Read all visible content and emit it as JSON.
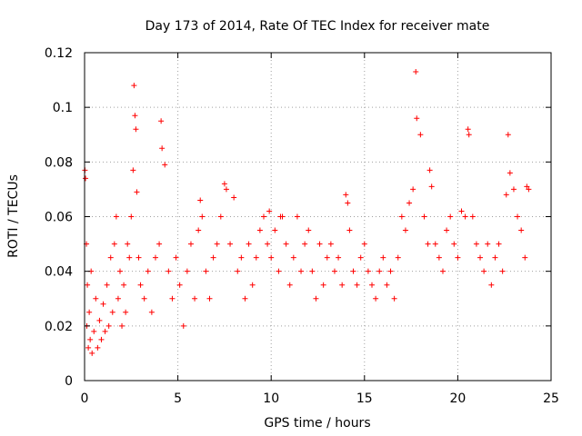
{
  "chart_data": {
    "type": "scatter",
    "title": "Day 173 of 2014, Rate Of TEC Index for receiver mate",
    "xlabel": "GPS time / hours",
    "ylabel": "ROTI / TECUs",
    "xlim": [
      0,
      25
    ],
    "ylim": [
      0,
      0.12
    ],
    "xticks": [
      0,
      5,
      10,
      15,
      20,
      25
    ],
    "xtick_labels": [
      "0",
      "5",
      "10",
      "15",
      "20",
      "25"
    ],
    "yticks": [
      0,
      0.02,
      0.04,
      0.06,
      0.08,
      0.1,
      0.12
    ],
    "ytick_labels": [
      "0",
      "0.02",
      "0.04",
      "0.06",
      "0.08",
      "0.1",
      "0.12"
    ],
    "grid": true,
    "marker": "+",
    "series": [
      {
        "name": "ROTI",
        "color": "#ff0000",
        "x": [
          0.02,
          0.05,
          0.1,
          0.12,
          0.15,
          0.2,
          0.25,
          0.3,
          0.35,
          0.4,
          0.5,
          0.6,
          0.7,
          0.8,
          0.9,
          1.0,
          1.1,
          1.2,
          1.3,
          1.4,
          1.5,
          1.6,
          1.7,
          1.8,
          1.9,
          2.0,
          2.1,
          2.2,
          2.3,
          2.4,
          2.5,
          2.6,
          2.65,
          2.7,
          2.75,
          2.8,
          2.9,
          3.0,
          3.2,
          3.4,
          3.6,
          3.8,
          4.0,
          4.1,
          4.15,
          4.3,
          4.5,
          4.7,
          4.9,
          5.1,
          5.3,
          5.5,
          5.7,
          5.9,
          6.1,
          6.2,
          6.3,
          6.5,
          6.7,
          6.9,
          7.1,
          7.3,
          7.5,
          7.6,
          7.8,
          8.0,
          8.2,
          8.4,
          8.6,
          8.8,
          9.0,
          9.2,
          9.4,
          9.6,
          9.8,
          9.9,
          10.0,
          10.2,
          10.4,
          10.5,
          10.6,
          10.8,
          11.0,
          11.2,
          11.4,
          11.6,
          11.8,
          12.0,
          12.2,
          12.4,
          12.6,
          12.8,
          13.0,
          13.2,
          13.4,
          13.6,
          13.8,
          14.0,
          14.1,
          14.2,
          14.4,
          14.6,
          14.8,
          15.0,
          15.2,
          15.4,
          15.6,
          15.8,
          16.0,
          16.2,
          16.4,
          16.6,
          16.8,
          17.0,
          17.2,
          17.4,
          17.6,
          17.75,
          17.8,
          18.0,
          18.2,
          18.4,
          18.5,
          18.6,
          18.8,
          19.0,
          19.2,
          19.4,
          19.6,
          19.8,
          20.0,
          20.2,
          20.4,
          20.55,
          20.6,
          20.8,
          21.0,
          21.2,
          21.4,
          21.6,
          21.8,
          22.0,
          22.2,
          22.4,
          22.6,
          22.7,
          22.8,
          23.0,
          23.2,
          23.4,
          23.6,
          23.7,
          23.8
        ],
        "y": [
          0.077,
          0.074,
          0.05,
          0.02,
          0.035,
          0.012,
          0.025,
          0.015,
          0.04,
          0.01,
          0.018,
          0.03,
          0.012,
          0.022,
          0.015,
          0.028,
          0.018,
          0.035,
          0.02,
          0.045,
          0.025,
          0.05,
          0.06,
          0.03,
          0.04,
          0.02,
          0.035,
          0.025,
          0.05,
          0.045,
          0.06,
          0.077,
          0.108,
          0.097,
          0.092,
          0.069,
          0.045,
          0.035,
          0.03,
          0.04,
          0.025,
          0.045,
          0.05,
          0.095,
          0.085,
          0.079,
          0.04,
          0.03,
          0.045,
          0.035,
          0.02,
          0.04,
          0.05,
          0.03,
          0.055,
          0.066,
          0.06,
          0.04,
          0.03,
          0.045,
          0.05,
          0.06,
          0.072,
          0.07,
          0.05,
          0.067,
          0.04,
          0.045,
          0.03,
          0.05,
          0.035,
          0.045,
          0.055,
          0.06,
          0.05,
          0.062,
          0.045,
          0.055,
          0.04,
          0.06,
          0.06,
          0.05,
          0.035,
          0.045,
          0.06,
          0.04,
          0.05,
          0.055,
          0.04,
          0.03,
          0.05,
          0.035,
          0.045,
          0.05,
          0.04,
          0.045,
          0.035,
          0.068,
          0.065,
          0.055,
          0.04,
          0.035,
          0.045,
          0.05,
          0.04,
          0.035,
          0.03,
          0.04,
          0.045,
          0.035,
          0.04,
          0.03,
          0.045,
          0.06,
          0.055,
          0.065,
          0.07,
          0.113,
          0.096,
          0.09,
          0.06,
          0.05,
          0.077,
          0.071,
          0.05,
          0.045,
          0.04,
          0.055,
          0.06,
          0.05,
          0.045,
          0.062,
          0.06,
          0.092,
          0.09,
          0.06,
          0.05,
          0.045,
          0.04,
          0.05,
          0.035,
          0.045,
          0.05,
          0.04,
          0.068,
          0.09,
          0.076,
          0.07,
          0.06,
          0.055,
          0.045,
          0.071,
          0.07
        ]
      }
    ]
  }
}
